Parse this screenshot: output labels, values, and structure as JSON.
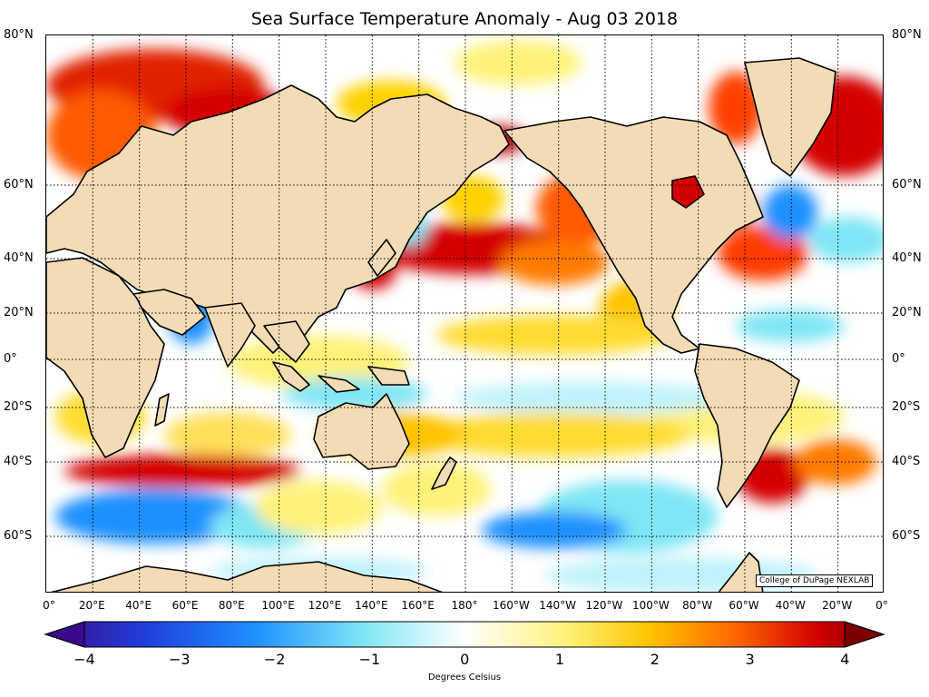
{
  "title": "Sea Surface Temperature Anomaly - Aug 03 2018",
  "credit": "College of DuPage NEXLAB",
  "lat_labels": [
    "80°N",
    "60°N",
    "40°N",
    "20°N",
    "0°",
    "20°S",
    "40°S",
    "60°S"
  ],
  "lon_labels": [
    "0°",
    "20°E",
    "40°E",
    "60°E",
    "80°E",
    "100°E",
    "120°E",
    "140°E",
    "160°E",
    "180°",
    "160°W",
    "140°W",
    "120°W",
    "100°W",
    "80°W",
    "60°W",
    "40°W",
    "20°W",
    "0°"
  ],
  "colorbar": {
    "ticks": [
      "−4",
      "−3",
      "−2",
      "−1",
      "0",
      "1",
      "2",
      "3",
      "4"
    ],
    "range": [
      -4,
      4
    ],
    "label": "Degrees Celsius"
  },
  "colors": {
    "land": "#f3dcb5",
    "ocean_neutral": "#ffffff",
    "scale_stops": [
      "#3a0a8c",
      "#1f3fd9",
      "#1e90ff",
      "#7fe6f5",
      "#ffffff",
      "#fff27a",
      "#ffc400",
      "#ff6a00",
      "#d40000",
      "#7a0000"
    ]
  }
}
